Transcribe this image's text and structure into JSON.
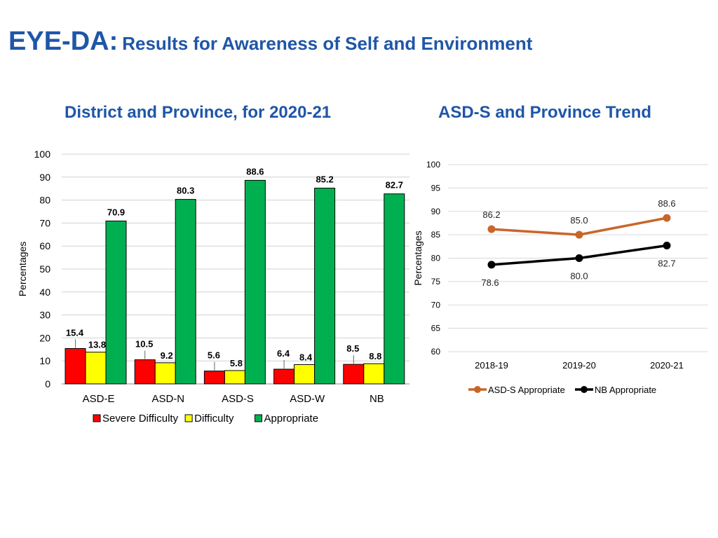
{
  "title": {
    "main": "EYE-DA:",
    "sub": "Results for Awareness of Self and Environment"
  },
  "chart_data": [
    {
      "type": "bar",
      "title": "District and Province, for 2020-21",
      "xlabel": "",
      "ylabel": "Percentages",
      "ylim": [
        0,
        100
      ],
      "yticks": [
        0,
        10,
        20,
        30,
        40,
        50,
        60,
        70,
        80,
        90,
        100
      ],
      "grid": true,
      "legend_position": "bottom",
      "categories": [
        "ASD-E",
        "ASD-N",
        "ASD-S",
        "ASD-W",
        "NB"
      ],
      "series": [
        {
          "name": "Severe Difficulty",
          "color": "#ff0000",
          "values": [
            15.4,
            10.5,
            5.6,
            6.4,
            8.5
          ]
        },
        {
          "name": "Difficulty",
          "color": "#ffff00",
          "values": [
            13.8,
            9.2,
            5.8,
            8.4,
            8.8
          ]
        },
        {
          "name": "Appropriate",
          "color": "#00b050",
          "values": [
            70.9,
            80.3,
            88.6,
            85.2,
            82.7
          ]
        }
      ]
    },
    {
      "type": "line",
      "title": "ASD-S and Province Trend",
      "xlabel": "",
      "ylabel": "Percentages",
      "ylim": [
        60,
        100
      ],
      "yticks": [
        60,
        65,
        70,
        75,
        80,
        85,
        90,
        95,
        100
      ],
      "grid": true,
      "legend_position": "bottom",
      "x": [
        "2018-19",
        "2019-20",
        "2020-21"
      ],
      "series": [
        {
          "name": "ASD-S Appropriate",
          "color": "#c8662a",
          "values": [
            86.2,
            85.0,
            88.6
          ],
          "labels": [
            "86.2",
            "85.0",
            "88.6"
          ]
        },
        {
          "name": "NB Appropriate",
          "color": "#000000",
          "values": [
            78.6,
            80.0,
            82.7
          ],
          "labels": [
            "78.6",
            "80.0",
            "82.7"
          ]
        }
      ]
    }
  ]
}
